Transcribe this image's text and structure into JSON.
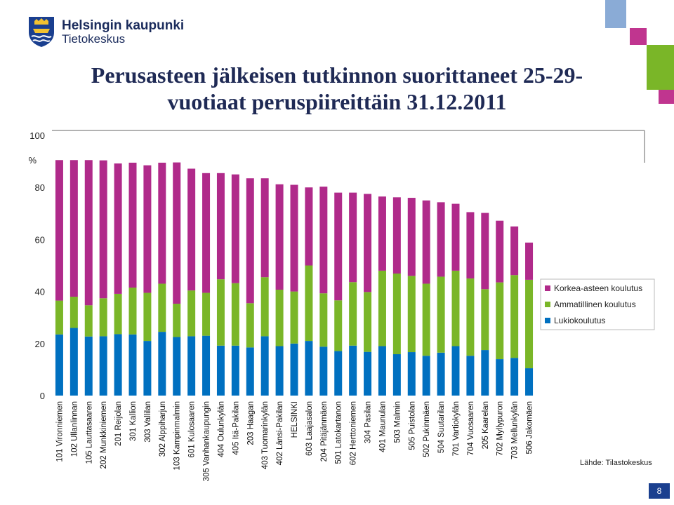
{
  "header": {
    "org_name": "Helsingin kaupunki",
    "org_unit": "Tietokeskus",
    "logo_icon": "helsinki-crest-icon"
  },
  "slide": {
    "title_line1": "Perusasteen jälkeisen tutkinnon suorittaneet  25-29-",
    "title_line2": "vuotiaat peruspiireittäin 31.12.2011",
    "source": "Lähde: Tilastokeskus",
    "page_number": "8"
  },
  "colors": {
    "lukio": "#0070c0",
    "ammatillinen": "#7ab628",
    "korkea": "#b02a8a",
    "deco_blue": "#8aabd6",
    "deco_magenta": "#c0358f",
    "deco_green": "#7ab628",
    "title": "#1f2a55"
  },
  "chart_data": {
    "type": "bar",
    "stacked": true,
    "ylabel": "%",
    "ylim": [
      0,
      100
    ],
    "yticks": [
      0,
      20,
      40,
      60,
      80,
      100
    ],
    "grid": false,
    "legend_position": "right",
    "categories": [
      "101 Vironniemen",
      "102 Ullanlinnan",
      "105 Lauttasaaren",
      "202 Munkkiniemen",
      "201 Reijolan",
      "301 Kallion",
      "303 Vallilan",
      "302 Alppiharjun",
      "103 Kampinmalmin",
      "601 Kulosaaren",
      "305 Vanhankaupungin",
      "404 Oulunkylän",
      "405 Itä-Pakilan",
      "203 Haagan",
      "403 Tuomarinkylän",
      "402 Länsi-Pakilan",
      "HELSINKI",
      "603 Laajasalon",
      "204 Pitäjänmäen",
      "501 Latokartanon",
      "602 Herttoniemen",
      "304 Pasilan",
      "401 Maunulan",
      "503 Malmin",
      "505 Puistolan",
      "502 Pukinmäen",
      "504 Suutarilan",
      "701 Vartiokylän",
      "704 Vuosaaren",
      "205 Kaarelan",
      "702 Myllypuron",
      "703 Mellunkylän",
      "506 Jakomäen"
    ],
    "series": [
      {
        "name": "Lukiokoulutus",
        "values": [
          23.5,
          26,
          22.7,
          22.8,
          23.6,
          23.5,
          21,
          24.5,
          22.5,
          22.8,
          23,
          19.2,
          19.2,
          18.5,
          22.8,
          19,
          20,
          21,
          18.8,
          17.1,
          19.2,
          16.8,
          19,
          15.9,
          16.7,
          15.3,
          16.5,
          19,
          15.3,
          17.5,
          14,
          14.5,
          10.5
        ]
      },
      {
        "name": "Ammatillinen koulutus",
        "values": [
          13,
          12,
          12,
          14.6,
          15.5,
          18,
          18.5,
          18.5,
          12.8,
          17.6,
          16.5,
          25.5,
          24,
          17,
          22.7,
          21.7,
          20,
          29,
          20.5,
          19.5,
          24.4,
          23,
          29,
          31,
          29.3,
          27.7,
          29.2,
          29,
          29.7,
          23.4,
          29.5,
          31.8,
          34
        ]
      },
      {
        "name": "Korkea-asteen koulutus",
        "values": [
          54,
          52.5,
          55.8,
          53,
          50.1,
          48,
          49,
          46.5,
          54.3,
          46.8,
          46,
          40.8,
          41.8,
          48,
          38,
          40.5,
          41,
          30,
          41,
          41.4,
          34.4,
          37.7,
          28.5,
          29.3,
          30,
          32,
          28.6,
          25.7,
          25.5,
          29.3,
          23.7,
          18.7,
          14.3
        ]
      }
    ],
    "legend": [
      "Korkea-asteen koulutus",
      "Ammatillinen koulutus",
      "Lukiokoulutus"
    ]
  }
}
